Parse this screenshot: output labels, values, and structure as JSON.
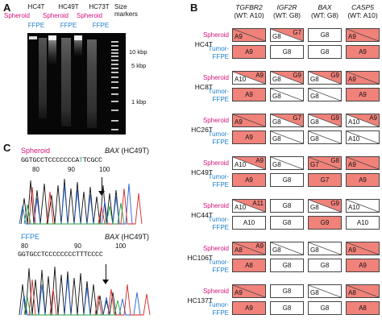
{
  "panel_a": {
    "letter": "A",
    "lanes": [
      {
        "sample": "HC4T",
        "prep": "Spheroid"
      },
      {
        "sample": "HC49T",
        "prep": "Spheroid",
        "prep2": "FFPE"
      },
      {
        "sample": "HC73T",
        "prep": "Spheroid",
        "prep2": "FFPE"
      }
    ],
    "lane_samples": [
      "HC4T",
      "HC49T",
      "HC73T"
    ],
    "lane_preps_row1": [
      "Spheroid",
      "Spheroid",
      "Spheroid"
    ],
    "lane_preps_row2": [
      "FFPE",
      "FFPE",
      "FFPE"
    ],
    "size_markers_label": "Size markers",
    "ladder": [
      "10 kbp",
      "5 kbp",
      "1 kbp"
    ]
  },
  "panel_b": {
    "letter": "B",
    "genes": [
      {
        "name": "TGFBR2",
        "wt": "(WT: A10)"
      },
      {
        "name": "IGF2R",
        "wt": "(WT: G8)"
      },
      {
        "name": "BAX",
        "wt": "(WT: G8)"
      },
      {
        "name": "CASP5",
        "wt": "(WT: A10)"
      }
    ],
    "row_spheroid": "Spheroid",
    "row_tumor": "Tumor-",
    "row_ffpe": "FFPE",
    "samples": [
      {
        "name": "HC4T",
        "spheroid": [
          {
            "type": "split",
            "tl": "A9",
            "tr": "",
            "tri": "red"
          },
          {
            "type": "split",
            "tl": "G8",
            "tr": "G7",
            "tri": "red"
          },
          {
            "type": "plain",
            "text": "G8"
          },
          {
            "type": "split",
            "tl": "A9",
            "tr": "",
            "tri": "red"
          }
        ],
        "ffpe": [
          {
            "type": "full",
            "text": "A9"
          },
          {
            "type": "plain",
            "text": "G8"
          },
          {
            "type": "plain",
            "text": "G8"
          },
          {
            "type": "full",
            "text": "A9"
          }
        ]
      },
      {
        "name": "HC8T",
        "spheroid": [
          {
            "type": "split",
            "tl": "A10",
            "tr": "A9",
            "tri": "red"
          },
          {
            "type": "split",
            "tl": "G8",
            "tr": "G9",
            "tri": "red"
          },
          {
            "type": "split",
            "tl": "G8",
            "tr": "G9",
            "tri": "red"
          },
          {
            "type": "split",
            "tl": "A9",
            "tr": "",
            "tri": "red"
          }
        ],
        "ffpe": [
          {
            "type": "full",
            "text": "A9"
          },
          {
            "type": "split",
            "tl": "G8",
            "tr": "",
            "tri": "white"
          },
          {
            "type": "split",
            "tl": "G8",
            "tr": "",
            "tri": "white"
          },
          {
            "type": "full",
            "text": "A9"
          }
        ]
      },
      {
        "name": "HC26T",
        "spheroid": [
          {
            "type": "split",
            "tl": "A9",
            "tr": "",
            "tri": "red"
          },
          {
            "type": "split",
            "tl": "G8",
            "tr": "G7",
            "tri": "red"
          },
          {
            "type": "split",
            "tl": "G8",
            "tr": "G9",
            "tri": "red"
          },
          {
            "type": "split",
            "tl": "A10",
            "tr": "A9",
            "tri": "red"
          }
        ],
        "ffpe": [
          {
            "type": "full",
            "text": "A9"
          },
          {
            "type": "split",
            "tl": "G8",
            "tr": "",
            "tri": "white"
          },
          {
            "type": "split",
            "tl": "G8",
            "tr": "",
            "tri": "white"
          },
          {
            "type": "split",
            "tl": "A10",
            "tr": "",
            "tri": "white"
          }
        ]
      },
      {
        "name": "HC49T",
        "spheroid": [
          {
            "type": "split",
            "tl": "A10",
            "tr": "A9",
            "tri": "red"
          },
          {
            "type": "split",
            "tl": "G8",
            "tr": "",
            "tri": "white"
          },
          {
            "type": "split",
            "tl": "G7",
            "tr": "G8",
            "tri": "red"
          },
          {
            "type": "split",
            "tl": "A9",
            "tr": "",
            "tri": "red"
          }
        ],
        "ffpe": [
          {
            "type": "full",
            "text": "A9"
          },
          {
            "type": "plain",
            "text": "G8"
          },
          {
            "type": "full",
            "text": "G7"
          },
          {
            "type": "full",
            "text": "A9"
          }
        ]
      },
      {
        "name": "HC44T",
        "spheroid": [
          {
            "type": "split",
            "tl": "A10",
            "tr": "A11",
            "tri": "red"
          },
          {
            "type": "plain",
            "text": "G8"
          },
          {
            "type": "split",
            "tl": "G8",
            "tr": "G9",
            "tri": "red"
          },
          {
            "type": "split",
            "tl": "A10",
            "tr": "",
            "tri": "white"
          }
        ],
        "ffpe": [
          {
            "type": "plain",
            "text": "A10"
          },
          {
            "type": "plain",
            "text": "G8"
          },
          {
            "type": "full",
            "text": "G9"
          },
          {
            "type": "plain",
            "text": "A10"
          }
        ]
      },
      {
        "name": "HC106T",
        "spheroid": [
          {
            "type": "split",
            "tl": "A8",
            "tr": "A9",
            "tri": "red"
          },
          {
            "type": "split",
            "tl": "G8",
            "tr": "",
            "tri": "white"
          },
          {
            "type": "split",
            "tl": "G8",
            "tr": "",
            "tri": "white"
          },
          {
            "type": "split",
            "tl": "A9",
            "tr": "",
            "tri": "red"
          }
        ],
        "ffpe": [
          {
            "type": "full",
            "text": "A8"
          },
          {
            "type": "plain",
            "text": "G8"
          },
          {
            "type": "plain",
            "text": "G8"
          },
          {
            "type": "full",
            "text": "A9"
          }
        ]
      },
      {
        "name": "HC137T",
        "spheroid": [
          {
            "type": "split",
            "tl": "A9",
            "tr": "",
            "tri": "red"
          },
          {
            "type": "plain",
            "text": "G8"
          },
          {
            "type": "split",
            "tl": "G8",
            "tr": "",
            "tri": "white"
          },
          {
            "type": "split",
            "tl": "A8",
            "tr": "",
            "tri": "red"
          }
        ],
        "ffpe": [
          {
            "type": "full",
            "text": "A9"
          },
          {
            "type": "plain",
            "text": "G8"
          },
          {
            "type": "plain",
            "text": "G8"
          },
          {
            "type": "full",
            "text": "A8"
          }
        ]
      }
    ]
  },
  "panel_c": {
    "letter": "C",
    "top": {
      "prep": "Spheroid",
      "gene": "BAX",
      "sample": "(HC49T)",
      "seq_pre": "GGTGCCTCCCCCCCA",
      "seq_hi": "T",
      "seq_post": "TCGCC",
      "nums": [
        "80",
        "90",
        "100"
      ]
    },
    "bottom": {
      "prep": "FFPE",
      "gene": "BAX",
      "sample": "(HC49T)",
      "seq": "GGTGCCTCCCCCCCCTTTCCCC",
      "nums": [
        "80",
        "90",
        "100"
      ]
    }
  },
  "colors": {
    "mutant": "#f0827a",
    "spheroid": "#d4127a",
    "ffpe": "#1f7ecb"
  }
}
